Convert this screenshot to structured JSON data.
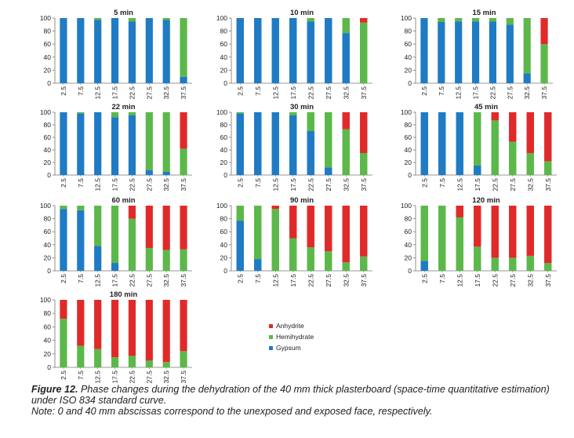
{
  "chart_data": {
    "type": "bar",
    "stacked": true,
    "ylim": [
      0,
      100
    ],
    "yticks": [
      0,
      20,
      40,
      60,
      80,
      100
    ],
    "categories": [
      "2.5",
      "7.5",
      "12.5",
      "17.5",
      "22.5",
      "27.5",
      "32.5",
      "37.5"
    ],
    "series_names": [
      "Gypsum",
      "Hemihydrate",
      "Anhydrite"
    ],
    "colors": {
      "Gypsum": "#1f7bc4",
      "Hemihydrate": "#5cb84a",
      "Anhydrite": "#e02a2a"
    },
    "legend": {
      "position": "bottom-right",
      "order": [
        "Anhydrite",
        "Hemihydrate",
        "Gypsum"
      ]
    },
    "panels": [
      {
        "title": "5 min",
        "gypsum": [
          100,
          100,
          97,
          100,
          95,
          100,
          97,
          10
        ],
        "hemihydrate": [
          0,
          0,
          3,
          0,
          5,
          0,
          3,
          90
        ],
        "anhydrite": [
          0,
          0,
          0,
          0,
          0,
          0,
          0,
          0
        ]
      },
      {
        "title": "10 min",
        "gypsum": [
          100,
          100,
          100,
          100,
          95,
          100,
          77,
          0
        ],
        "hemihydrate": [
          0,
          0,
          0,
          0,
          5,
          0,
          23,
          93
        ],
        "anhydrite": [
          0,
          0,
          0,
          0,
          0,
          0,
          0,
          7
        ]
      },
      {
        "title": "15 min",
        "gypsum": [
          100,
          94,
          95,
          95,
          95,
          90,
          15,
          0
        ],
        "hemihydrate": [
          0,
          6,
          5,
          5,
          5,
          10,
          85,
          60
        ],
        "anhydrite": [
          0,
          0,
          0,
          0,
          0,
          0,
          0,
          40
        ]
      },
      {
        "title": "22 min",
        "gypsum": [
          100,
          98,
          100,
          92,
          95,
          8,
          5,
          0
        ],
        "hemihydrate": [
          0,
          2,
          0,
          8,
          5,
          92,
          95,
          42
        ],
        "anhydrite": [
          0,
          0,
          0,
          0,
          0,
          0,
          0,
          58
        ]
      },
      {
        "title": "30 min",
        "gypsum": [
          98,
          100,
          100,
          95,
          70,
          12,
          0,
          0
        ],
        "hemihydrate": [
          2,
          0,
          0,
          5,
          30,
          88,
          73,
          35
        ],
        "anhydrite": [
          0,
          0,
          0,
          0,
          0,
          0,
          27,
          65
        ]
      },
      {
        "title": "45 min",
        "gypsum": [
          100,
          100,
          100,
          15,
          0,
          0,
          0,
          0
        ],
        "hemihydrate": [
          0,
          0,
          0,
          85,
          87,
          53,
          35,
          22
        ],
        "anhydrite": [
          0,
          0,
          0,
          0,
          13,
          47,
          65,
          78
        ]
      },
      {
        "title": "60 min",
        "gypsum": [
          95,
          93,
          38,
          12,
          0,
          0,
          0,
          0
        ],
        "hemihydrate": [
          5,
          7,
          62,
          88,
          80,
          35,
          32,
          33
        ],
        "anhydrite": [
          0,
          0,
          0,
          0,
          20,
          65,
          68,
          67
        ]
      },
      {
        "title": "90 min",
        "gypsum": [
          77,
          18,
          0,
          0,
          0,
          0,
          0,
          0
        ],
        "hemihydrate": [
          23,
          82,
          95,
          50,
          36,
          30,
          13,
          22
        ],
        "anhydrite": [
          0,
          0,
          5,
          50,
          64,
          70,
          87,
          78
        ]
      },
      {
        "title": "120 min",
        "gypsum": [
          15,
          0,
          0,
          0,
          0,
          0,
          0,
          0
        ],
        "hemihydrate": [
          85,
          100,
          82,
          37,
          20,
          20,
          23,
          12
        ],
        "anhydrite": [
          0,
          0,
          18,
          63,
          80,
          80,
          77,
          88
        ]
      },
      {
        "title": "180 min",
        "gypsum": [
          0,
          0,
          0,
          0,
          0,
          0,
          0,
          0
        ],
        "hemihydrate": [
          72,
          32,
          27,
          15,
          17,
          10,
          8,
          24
        ],
        "anhydrite": [
          28,
          68,
          73,
          85,
          83,
          90,
          92,
          76
        ]
      }
    ]
  },
  "caption": {
    "figure_label": "Figure 12.",
    "text": " Phase changes during the dehydration of the 40 mm thick plasterboard (space-time quantitative estimation) under ISO 834 standard curve.",
    "note": "Note: 0 and 40 mm abscissas correspond to the unexposed and exposed face, respectively."
  }
}
